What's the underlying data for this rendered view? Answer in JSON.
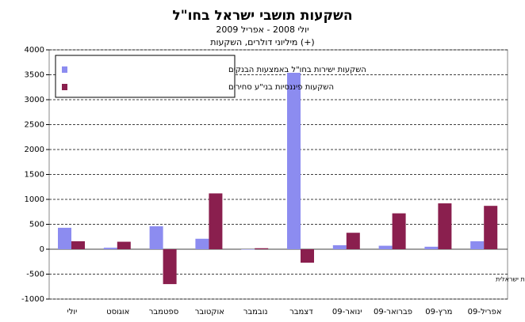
{
  "chart_data": {
    "type": "bar",
    "title": "השקעות תושבי ישראל בחו\"ל",
    "subtitle": "יולי 2008 - אפריל 2009",
    "units": "מיליוני דולרים, השקעות (+)",
    "annotation": "דצמבר כולל רכישה גדולה שבוצעה ע\"י חברת תרופות ישראלית",
    "categories": [
      "יולי",
      "אוגוסט",
      "ספטמבר",
      "אוקטובר",
      "נובמבר",
      "דצמבר",
      "ינואר-09",
      "פברואר-09",
      "מרץ-09",
      "אפריל-09"
    ],
    "series": [
      {
        "name": "השקעות ישירות בחו\"ל באמצעות הבנקים",
        "color": "#8c8cf0",
        "values": [
          430,
          30,
          460,
          210,
          0,
          3540,
          80,
          70,
          50,
          160
        ]
      },
      {
        "name": "השקעות פיננסיות בני\"ע סחירים",
        "color": "#8a1f4e",
        "values": [
          160,
          150,
          -700,
          1120,
          20,
          -270,
          330,
          720,
          920,
          870
        ]
      }
    ],
    "ylim": [
      -1000,
      4000
    ],
    "yticks": [
      -1000,
      -500,
      0,
      500,
      1000,
      1500,
      2000,
      2500,
      3000,
      3500,
      4000
    ],
    "grid": true,
    "legend": "top-left"
  }
}
